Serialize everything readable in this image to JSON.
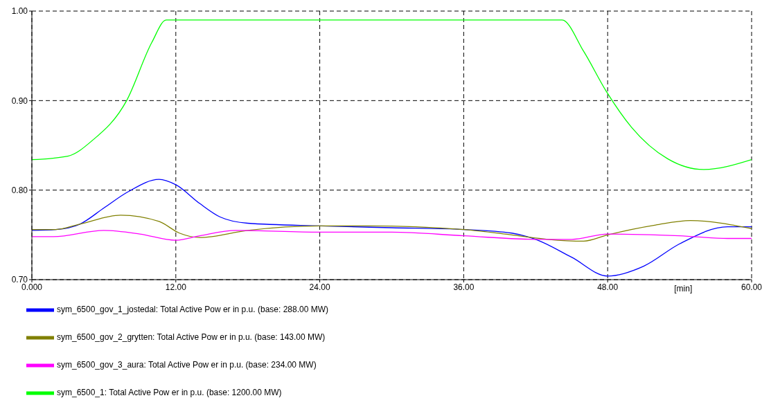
{
  "chart_data": {
    "type": "line",
    "xlabel": "[min]",
    "xlim": [
      0,
      60
    ],
    "xticks": [
      {
        "value": 0,
        "label": "0.000"
      },
      {
        "value": 12,
        "label": "12.00"
      },
      {
        "value": 24,
        "label": "24.00"
      },
      {
        "value": 36,
        "label": "36.00"
      },
      {
        "value": 48,
        "label": "48.00"
      },
      {
        "value": 60,
        "label": "60.00"
      }
    ],
    "ylim": [
      0.7,
      1.0
    ],
    "yticks": [
      {
        "value": 0.7,
        "label": "0.70"
      },
      {
        "value": 0.8,
        "label": "0.80"
      },
      {
        "value": 0.9,
        "label": "0.90"
      },
      {
        "value": 1.0,
        "label": "1.00"
      }
    ],
    "grid": true,
    "legend": "bottom",
    "marker": "none",
    "line_style": "solid",
    "series": [
      {
        "name": "sym_6500_gov_1_jostedal: Total Active Pow er in p.u. (base: 288.00 MW)",
        "color": "#0000ff",
        "x": [
          0,
          2,
          4,
          6,
          8,
          10.6,
          12,
          14,
          15.7,
          18,
          24,
          30,
          36,
          40,
          42,
          45,
          48,
          51,
          54,
          58,
          60
        ],
        "values": [
          0.755,
          0.756,
          0.762,
          0.78,
          0.798,
          0.812,
          0.806,
          0.785,
          0.77,
          0.763,
          0.76,
          0.758,
          0.756,
          0.752,
          0.745,
          0.725,
          0.704,
          0.715,
          0.74,
          0.759,
          0.759
        ]
      },
      {
        "name": "sym_6500_gov_2_grytten: Total Active Pow er in p.u. (base: 143.00 MW)",
        "color": "#808000",
        "x": [
          0,
          2,
          4,
          7.4,
          10.6,
          12.3,
          14,
          18,
          24,
          28,
          36,
          40,
          43,
          46,
          48,
          52,
          54.9,
          60
        ],
        "values": [
          0.756,
          0.756,
          0.762,
          0.772,
          0.765,
          0.752,
          0.747,
          0.755,
          0.76,
          0.76,
          0.756,
          0.75,
          0.745,
          0.743,
          0.75,
          0.761,
          0.766,
          0.757
        ]
      },
      {
        "name": "sym_6500_gov_3_aura: Total Active Pow er in p.u. (base: 234.00 MW)",
        "color": "#ff00ff",
        "x": [
          0,
          1.8,
          6,
          9,
          12,
          14,
          17,
          24,
          30,
          36,
          42,
          45,
          48,
          54,
          58,
          60
        ],
        "values": [
          0.748,
          0.748,
          0.755,
          0.751,
          0.744,
          0.749,
          0.755,
          0.753,
          0.753,
          0.749,
          0.745,
          0.745,
          0.751,
          0.749,
          0.746,
          0.746
        ]
      },
      {
        "name": "sym_6500_1: Total Active Pow er in p.u. (base: 1200.00 MW)",
        "color": "#00ff00",
        "x": [
          0,
          3,
          5,
          7.9,
          10,
          11.2,
          20,
          30,
          40,
          44.2,
          46,
          47.9,
          50,
          53,
          56,
          60
        ],
        "values": [
          0.834,
          0.838,
          0.855,
          0.9,
          0.965,
          0.99,
          0.99,
          0.99,
          0.99,
          0.99,
          0.955,
          0.91,
          0.87,
          0.835,
          0.823,
          0.834
        ]
      }
    ]
  }
}
